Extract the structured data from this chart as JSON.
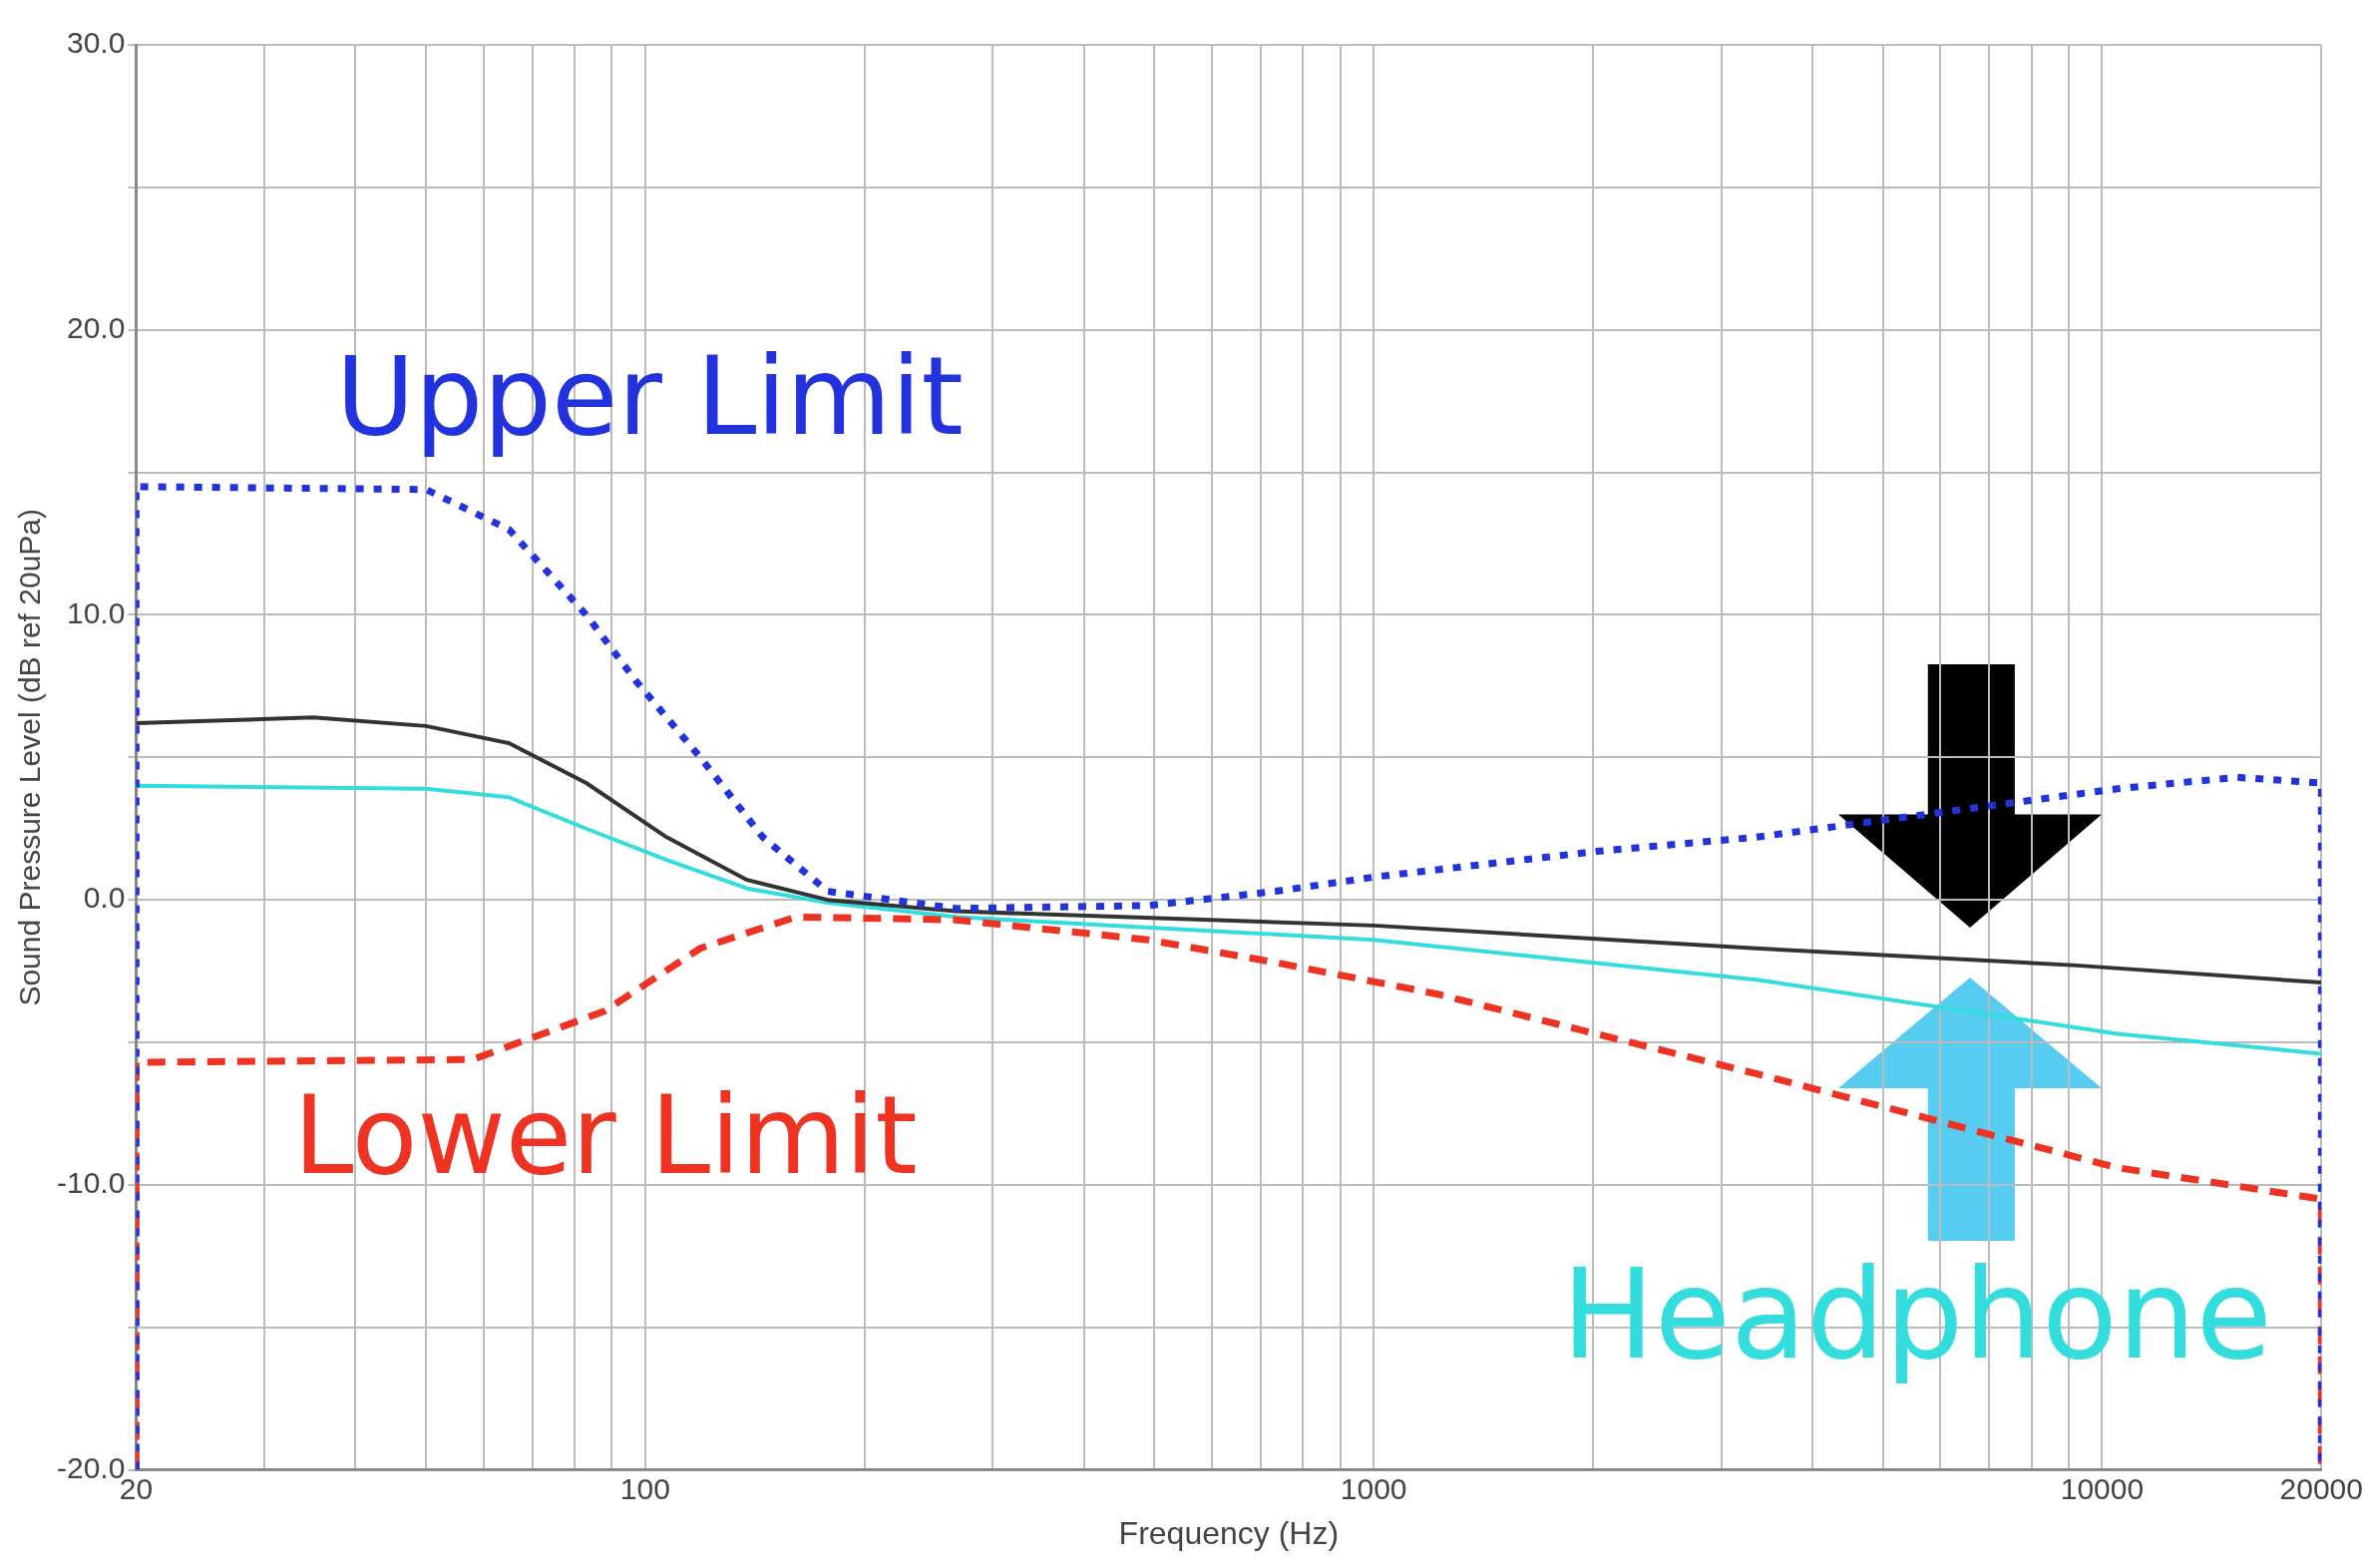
{
  "chart_data": {
    "type": "line",
    "xlabel": "Frequency (Hz)",
    "ylabel": "Sound Pressure Level (dB ref 20uPa)",
    "log": "x",
    "grid": true,
    "legend": false,
    "marker": "none",
    "xlim": [
      20,
      20000
    ],
    "ylim": [
      -20,
      30
    ],
    "xticks": [
      20,
      {
        "value": 30,
        "label": null
      },
      {
        "value": 40,
        "label": null
      },
      {
        "value": 50,
        "label": null
      },
      {
        "value": 60,
        "label": null
      },
      {
        "value": 70,
        "label": null
      },
      {
        "value": 80,
        "label": null
      },
      {
        "value": 90,
        "label": null
      },
      100,
      {
        "value": 200,
        "label": null
      },
      {
        "value": 300,
        "label": null
      },
      {
        "value": 400,
        "label": null
      },
      {
        "value": 500,
        "label": null
      },
      {
        "value": 600,
        "label": null
      },
      {
        "value": 700,
        "label": null
      },
      {
        "value": 800,
        "label": null
      },
      {
        "value": 900,
        "label": null
      },
      1000,
      {
        "value": 2000,
        "label": null
      },
      {
        "value": 3000,
        "label": null
      },
      {
        "value": 4000,
        "label": null
      },
      {
        "value": 5000,
        "label": null
      },
      {
        "value": 6000,
        "label": null
      },
      {
        "value": 7000,
        "label": null
      },
      {
        "value": 8000,
        "label": null
      },
      {
        "value": 9000,
        "label": null
      },
      10000,
      20000
    ],
    "yticks": [
      {
        "value": -20,
        "label": "-20.0"
      },
      {
        "value": -15,
        "label": null
      },
      {
        "value": -10,
        "label": "-10.0"
      },
      {
        "value": -5,
        "label": null
      },
      {
        "value": 0,
        "label": "0.0"
      },
      {
        "value": 5,
        "label": null
      },
      {
        "value": 10,
        "label": "10.0"
      },
      {
        "value": 15,
        "label": null
      },
      {
        "value": 20,
        "label": "20.0"
      },
      {
        "value": 25,
        "label": null
      },
      {
        "value": 30,
        "label": "30.0"
      }
    ],
    "series": [
      {
        "name": "Upper Limit",
        "color": "#2233dd",
        "line_style": "dotted",
        "x": [
          20,
          20,
          50,
          65,
          83,
          97,
          119,
          145,
          178,
          267,
          490,
          734,
          1000,
          2020,
          3350,
          10500,
          15300,
          20000,
          20000
        ],
        "values": [
          -20,
          14.5,
          14.4,
          13,
          10,
          7.7,
          5,
          2.2,
          0.3,
          -0.3,
          -0.2,
          0.3,
          0.8,
          1.7,
          2.2,
          3.9,
          4.3,
          4.1,
          -20
        ]
      },
      {
        "name": "Lower Limit",
        "color": "#ee3322",
        "line_style": "dashed",
        "x": [
          20,
          20,
          58,
          88,
          119,
          161,
          267,
          490,
          734,
          1220,
          2020,
          3350,
          10500,
          20000,
          20000
        ],
        "values": [
          -20,
          -5.7,
          -5.6,
          -3.9,
          -1.7,
          -0.6,
          -0.7,
          -1.4,
          -2.2,
          -3.3,
          -4.7,
          -6.1,
          -9.4,
          -10.5,
          -20
        ]
      },
      {
        "color": "#333333",
        "line_style": "solid",
        "x": [
          20,
          35,
          50,
          65,
          83,
          107,
          138,
          178,
          267,
          1000,
          3350,
          9220,
          20000
        ],
        "values": [
          6.2,
          6.4,
          6.1,
          5.5,
          4.1,
          2.2,
          0.7,
          0,
          -0.4,
          -0.9,
          -1.7,
          -2.3,
          -2.9
        ]
      },
      {
        "name": "Headphone",
        "color": "#33dddd",
        "line_style": "solid",
        "x": [
          20,
          50,
          65,
          83,
          107,
          138,
          178,
          267,
          1000,
          3350,
          10500,
          20000
        ],
        "values": [
          4,
          3.9,
          3.6,
          2.5,
          1.4,
          0.4,
          -0.1,
          -0.6,
          -1.4,
          -2.8,
          -4.7,
          -5.4
        ]
      }
    ]
  }
}
